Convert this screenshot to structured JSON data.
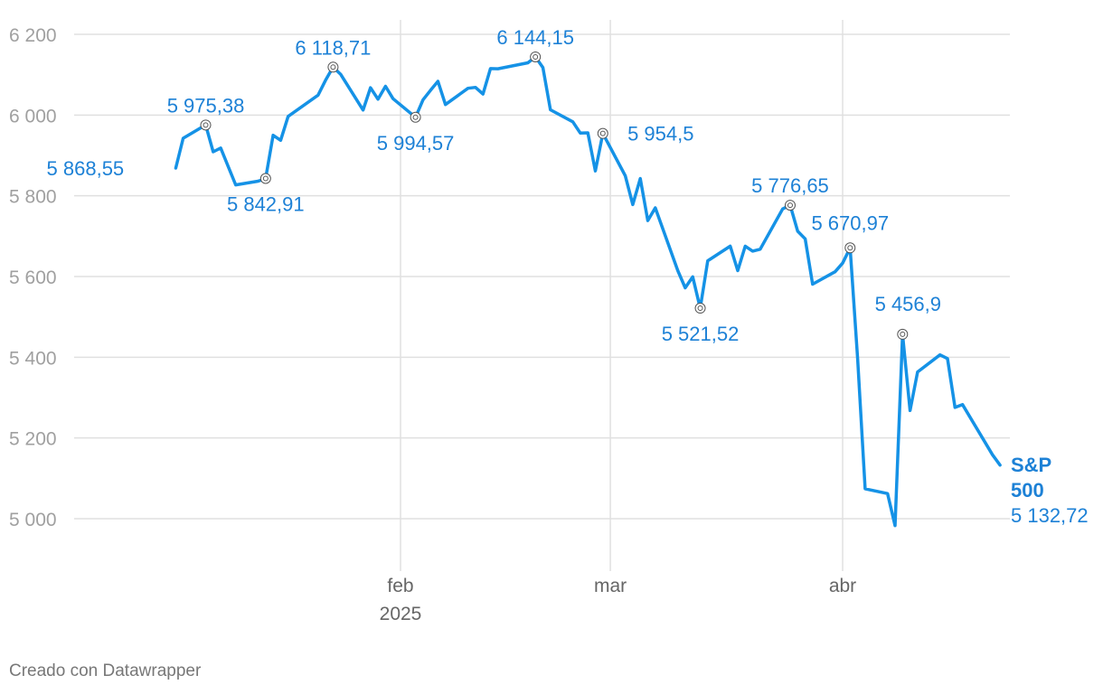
{
  "footer": "Creado con Datawrapper",
  "colors": {
    "line": "#1592e6",
    "label": "#1d81d6",
    "grid": "#e0e0e0",
    "ytick": "#a0a0a0",
    "xtick": "#666666"
  },
  "chart_data": {
    "type": "line",
    "title": "",
    "xlabel": "",
    "ylabel": "",
    "ylim": [
      4900,
      6200
    ],
    "xlim": [
      "2025-01-10",
      "2025-04-22"
    ],
    "grid": true,
    "yticks": [
      {
        "value": 6200,
        "label": "6 200"
      },
      {
        "value": 6000,
        "label": "6 000"
      },
      {
        "value": 5800,
        "label": "5 800"
      },
      {
        "value": 5600,
        "label": "5 600"
      },
      {
        "value": 5400,
        "label": "5 400"
      },
      {
        "value": 5200,
        "label": "5 200"
      },
      {
        "value": 5000,
        "label": "5 000"
      }
    ],
    "xticks": [
      {
        "date": "2025-02-01",
        "label": "feb",
        "sublabel": "2025"
      },
      {
        "date": "2025-03-01",
        "label": "mar",
        "sublabel": ""
      },
      {
        "date": "2025-04-01",
        "label": "abr",
        "sublabel": ""
      }
    ],
    "series": [
      {
        "name": "S&P 500",
        "last_label": "5 132,72",
        "x": [
          "2025-01-10",
          "2025-01-13",
          "2025-01-14",
          "2025-01-15",
          "2025-01-16",
          "2025-01-17",
          "2025-01-21",
          "2025-01-22",
          "2025-01-23",
          "2025-01-24",
          "2025-01-27",
          "2025-01-28",
          "2025-01-29",
          "2025-01-30",
          "2025-01-31",
          "2025-02-03",
          "2025-02-04",
          "2025-02-05",
          "2025-02-06",
          "2025-02-07",
          "2025-02-10",
          "2025-02-11",
          "2025-02-12",
          "2025-02-13",
          "2025-02-14",
          "2025-02-18",
          "2025-02-19",
          "2025-02-20",
          "2025-02-21",
          "2025-02-24",
          "2025-02-25",
          "2025-02-26",
          "2025-02-27",
          "2025-02-28",
          "2025-03-03",
          "2025-03-04",
          "2025-03-05",
          "2025-03-06",
          "2025-03-07",
          "2025-03-10",
          "2025-03-11",
          "2025-03-12",
          "2025-03-13",
          "2025-03-14",
          "2025-03-17",
          "2025-03-18",
          "2025-03-19",
          "2025-03-20",
          "2025-03-21",
          "2025-03-24",
          "2025-03-25",
          "2025-03-26",
          "2025-03-27",
          "2025-03-28",
          "2025-03-31",
          "2025-04-01",
          "2025-04-02",
          "2025-04-03",
          "2025-04-04",
          "2025-04-07",
          "2025-04-08",
          "2025-04-09",
          "2025-04-10",
          "2025-04-11",
          "2025-04-14",
          "2025-04-15",
          "2025-04-16",
          "2025-04-17",
          "2025-04-21"
        ],
        "y": [
          5827.04,
          5836.22,
          5842.91,
          5949.91,
          5937.34,
          5996.66,
          6049.24,
          6086.37,
          6118.71,
          6101.24,
          6012.28,
          6067.7,
          6039.31,
          6071.17,
          6040.53,
          5994.57,
          6037.88,
          6061.48,
          6083.57,
          6025.99,
          6066.44,
          6068.5,
          6051.97,
          6115.07,
          6114.63,
          6129.58,
          6144.15,
          6117.52,
          6013.13,
          5983.25,
          5955.25,
          5956.06,
          5861.57,
          5954.5,
          5849.72,
          5778.15,
          5842.63,
          5738.52,
          5770.2,
          5614.56,
          5572.07,
          5599.3,
          5521.52,
          5638.94,
          5675.12,
          5614.66,
          5675.29,
          5662.89,
          5667.56,
          5767.57,
          5776.65,
          5712.2,
          5693.31,
          5580.94,
          5611.85,
          5633.07,
          5670.97,
          5396.52,
          5074.08,
          5062.25,
          4982.77,
          5456.9,
          5268.05,
          5363.36,
          5405.97,
          5396.63,
          5275.7,
          5282.7,
          5158.2
        ],
        "tail": {
          "date": "2025-04-22",
          "y": 5132.72
        },
        "head": [
          {
            "date": "2025-01-02",
            "y": 5868.55
          },
          {
            "date": "2025-01-03",
            "y": 5942.47
          },
          {
            "date": "2025-01-06",
            "y": 5975.38
          },
          {
            "date": "2025-01-07",
            "y": 5909.03
          },
          {
            "date": "2025-01-08",
            "y": 5918.25
          }
        ]
      }
    ],
    "annotations": [
      {
        "date": "2025-01-02",
        "value": 5868.55,
        "label": "5 868,55",
        "marker": false
      },
      {
        "date": "2025-01-06",
        "value": 5975.38,
        "label": "5 975,38",
        "marker": true
      },
      {
        "date": "2025-01-14",
        "value": 5842.91,
        "label": "5 842,91",
        "marker": true
      },
      {
        "date": "2025-01-23",
        "value": 6118.71,
        "label": "6 118,71",
        "marker": true
      },
      {
        "date": "2025-02-03",
        "value": 5994.57,
        "label": "5 994,57",
        "marker": true
      },
      {
        "date": "2025-02-19",
        "value": 6144.15,
        "label": "6 144,15",
        "marker": true
      },
      {
        "date": "2025-02-28",
        "value": 5954.5,
        "label": "5 954,5",
        "marker": true
      },
      {
        "date": "2025-03-13",
        "value": 5521.52,
        "label": "5 521,52",
        "marker": true
      },
      {
        "date": "2025-03-25",
        "value": 5776.65,
        "label": "5 776,65",
        "marker": true
      },
      {
        "date": "2025-04-02",
        "value": 5670.97,
        "label": "5 670,97",
        "marker": true
      },
      {
        "date": "2025-04-09",
        "value": 5456.9,
        "label": "5 456,9",
        "marker": true
      }
    ]
  }
}
